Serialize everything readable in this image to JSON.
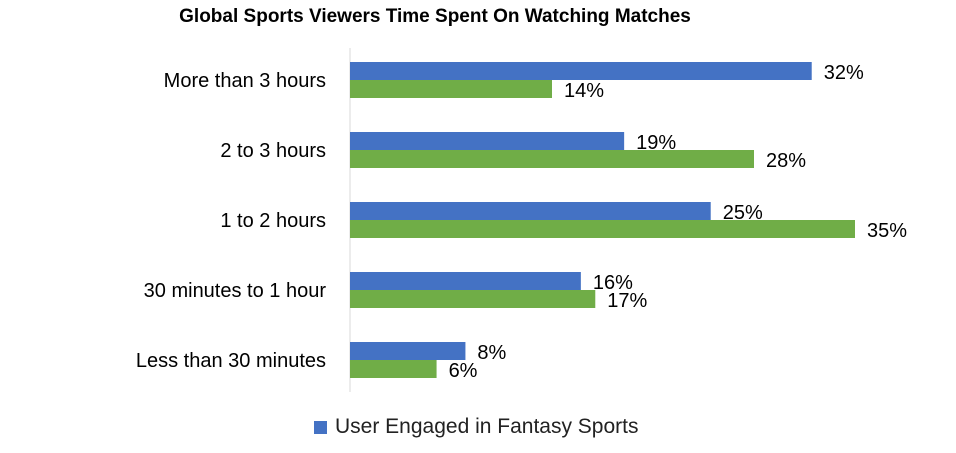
{
  "chart_data": {
    "type": "bar",
    "orientation": "horizontal",
    "title": "Global Sports Viewers Time Spent On Watching Matches",
    "categories": [
      "More than 3 hours",
      "2 to 3 hours",
      "1 to 2 hours",
      "30 minutes to 1 hour",
      "Less than 30 minutes"
    ],
    "series": [
      {
        "name": "User Engaged in Fantasy Sports",
        "values": [
          32,
          19,
          25,
          16,
          8
        ],
        "labels": [
          "32%",
          "19%",
          "25%",
          "16%",
          "8%"
        ],
        "color": "#4472C4"
      },
      {
        "values": [
          14,
          28,
          35,
          17,
          6
        ],
        "labels": [
          "14%",
          "28%",
          "35%",
          "17%",
          "6%"
        ],
        "color": "#70AD47"
      }
    ],
    "xlim": [
      0,
      35
    ],
    "value_unit": "%",
    "grid": false,
    "legend_position": "bottom"
  }
}
